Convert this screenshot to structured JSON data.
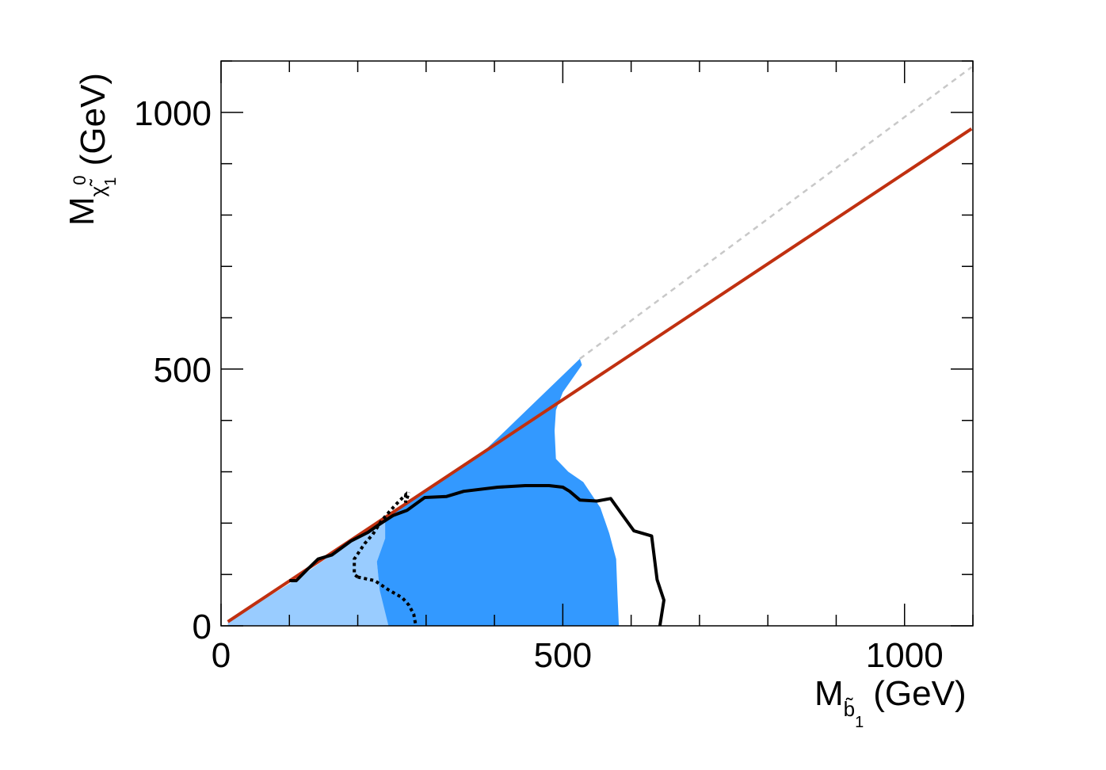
{
  "chart_data": {
    "type": "area",
    "title": "",
    "xlabel": {
      "main": "M",
      "subscript": "b̃",
      "subscript_index": "1",
      "unit": "(GeV)"
    },
    "ylabel": {
      "main": "M",
      "subscript": "χ̃",
      "subscript_index": "1",
      "superscript": "0",
      "unit": "(GeV)"
    },
    "xlim": [
      0,
      1100
    ],
    "ylim": [
      0,
      1100
    ],
    "x_major_ticks": [
      0,
      500,
      1000
    ],
    "y_major_ticks": [
      0,
      500,
      1000
    ],
    "x_tick_labels": [
      "0",
      "500",
      "1000"
    ],
    "y_tick_labels": [
      "0",
      "500",
      "1000"
    ],
    "grid": false,
    "colors": {
      "light_region": "#99ccff",
      "dark_region": "#3399ff",
      "kinematic_line": "#c8c8c8",
      "reference_line": "#c03010",
      "contour": "#000000"
    },
    "series": [
      {
        "kind": "light-filled-region",
        "points": [
          [
            10,
            8
          ],
          [
            112,
            92
          ],
          [
            185,
            160
          ],
          [
            212,
            185
          ],
          [
            240,
            212
          ],
          [
            240,
            170
          ],
          [
            228,
            125
          ],
          [
            232,
            70
          ],
          [
            245,
            25
          ],
          [
            245,
            0
          ],
          [
            10,
            0
          ]
        ]
      },
      {
        "kind": "dark-filled-region",
        "points": [
          [
            240,
            212
          ],
          [
            280,
            248
          ],
          [
            380,
            334
          ],
          [
            525,
            520
          ],
          [
            528,
            508
          ],
          [
            500,
            455
          ],
          [
            490,
            420
          ],
          [
            488,
            380
          ],
          [
            490,
            325
          ],
          [
            508,
            300
          ],
          [
            530,
            280
          ],
          [
            555,
            230
          ],
          [
            568,
            180
          ],
          [
            578,
            130
          ],
          [
            580,
            60
          ],
          [
            582,
            0
          ],
          [
            245,
            0
          ],
          [
            232,
            70
          ],
          [
            228,
            125
          ],
          [
            240,
            170
          ]
        ]
      },
      {
        "kind": "kinematic-diagonal-dashed",
        "points": [
          [
            525,
            520
          ],
          [
            1098,
            1088
          ]
        ]
      },
      {
        "kind": "reference-line",
        "points": [
          [
            10,
            8
          ],
          [
            1098,
            968
          ]
        ]
      },
      {
        "kind": "solid-contour",
        "points": [
          [
            100,
            88
          ],
          [
            110,
            88
          ],
          [
            125,
            108
          ],
          [
            142,
            130
          ],
          [
            162,
            138
          ],
          [
            190,
            165
          ],
          [
            215,
            182
          ],
          [
            232,
            198
          ],
          [
            252,
            215
          ],
          [
            272,
            225
          ],
          [
            298,
            250
          ],
          [
            330,
            252
          ],
          [
            345,
            258
          ],
          [
            355,
            262
          ],
          [
            405,
            270
          ],
          [
            445,
            273
          ],
          [
            480,
            273
          ],
          [
            500,
            270
          ],
          [
            510,
            262
          ],
          [
            525,
            245
          ],
          [
            550,
            243
          ],
          [
            570,
            248
          ],
          [
            585,
            220
          ],
          [
            604,
            185
          ],
          [
            630,
            175
          ],
          [
            638,
            90
          ],
          [
            648,
            50
          ],
          [
            642,
            0
          ]
        ]
      },
      {
        "kind": "dashed-contour",
        "points": [
          [
            200,
            95
          ],
          [
            195,
            100
          ],
          [
            195,
            130
          ],
          [
            210,
            160
          ],
          [
            222,
            178
          ],
          [
            235,
            205
          ],
          [
            248,
            225
          ],
          [
            260,
            242
          ],
          [
            270,
            255
          ],
          [
            270,
            240
          ],
          [
            275,
            260
          ]
        ]
      },
      {
        "kind": "dashed-contour-lower",
        "points": [
          [
            200,
            95
          ],
          [
            225,
            88
          ],
          [
            245,
            70
          ],
          [
            265,
            55
          ],
          [
            275,
            40
          ],
          [
            282,
            22
          ],
          [
            285,
            0
          ]
        ]
      }
    ]
  }
}
